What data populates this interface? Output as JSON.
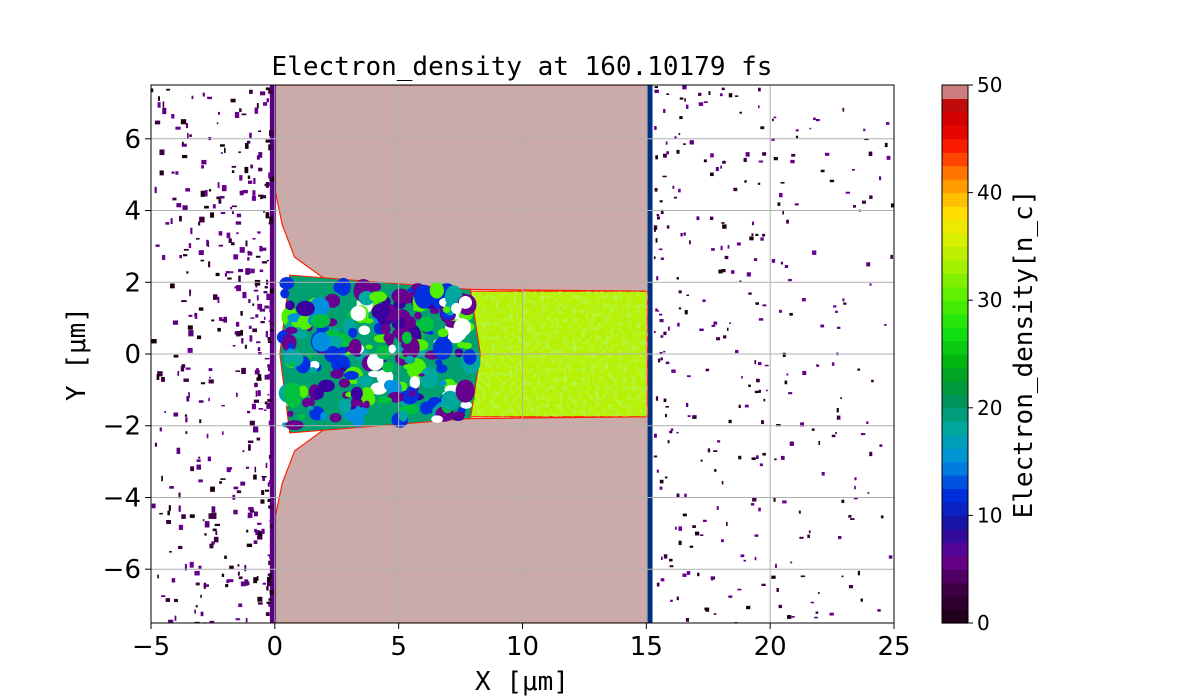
{
  "chart_data": {
    "type": "heatmap",
    "title": "Electron_density at 160.10179 fs",
    "xlabel": "X [μm]",
    "ylabel": "Y [μm]",
    "xlim": [
      -5,
      25
    ],
    "ylim": [
      -7.5,
      7.5
    ],
    "xticks": [
      -5,
      0,
      5,
      10,
      15,
      20,
      25
    ],
    "yticks": [
      -6,
      -4,
      -2,
      0,
      2,
      4,
      6
    ],
    "grid": true,
    "colorbar": {
      "label": "Electron_density[n_c]",
      "range": [
        0,
        50
      ],
      "ticks": [
        0,
        10,
        20,
        30,
        40,
        50
      ]
    },
    "regions": [
      {
        "name": "saturated slab upper",
        "x": [
          0,
          15.1
        ],
        "y": [
          1.8,
          7.5
        ],
        "value": 50
      },
      {
        "name": "saturated slab lower",
        "x": [
          0,
          15.1
        ],
        "y": [
          -7.5,
          -1.8
        ],
        "value": 50
      },
      {
        "name": "compressed channel",
        "x": [
          7.8,
          15.0
        ],
        "y": [
          -1.75,
          1.75
        ],
        "value": 32
      },
      {
        "name": "bored channel (mixed low/mid density)",
        "x": [
          0.5,
          8.0
        ],
        "y": [
          -1.9,
          1.9
        ],
        "value": 10
      }
    ]
  }
}
